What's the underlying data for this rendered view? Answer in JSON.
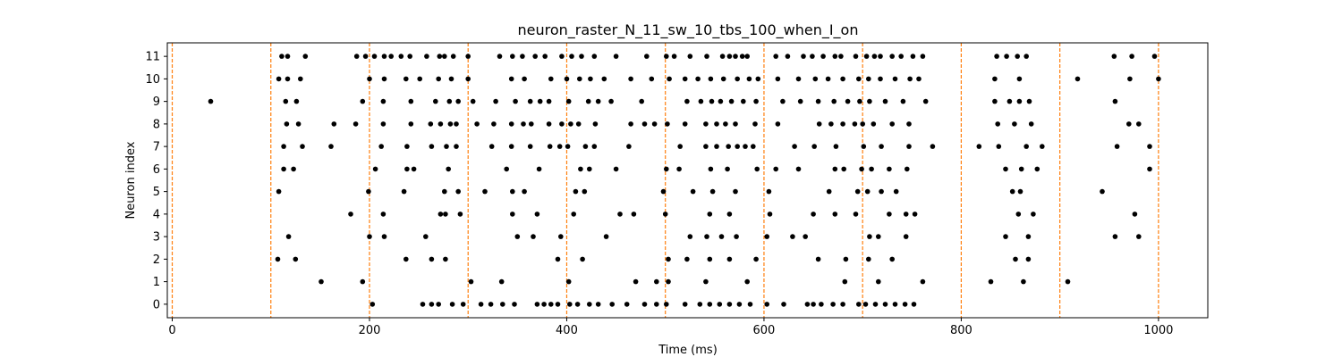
{
  "chart_data": {
    "type": "scatter",
    "title": "neuron_raster_N_11_sw_10_tbs_100_when_I_on",
    "xlabel": "Time (ms)",
    "ylabel": "Neuron index",
    "xlim": [
      -5,
      1050
    ],
    "ylim": [
      -0.6,
      11.6
    ],
    "xticks": [
      0,
      200,
      400,
      600,
      800,
      1000
    ],
    "yticks": [
      0,
      1,
      2,
      3,
      4,
      5,
      6,
      7,
      8,
      9,
      10,
      11
    ],
    "grid": false,
    "legend": "none",
    "marker_color": "#000000",
    "vline_color": "#ff7f0e",
    "vline_style": "dashed",
    "vlines": [
      0,
      100,
      200,
      300,
      400,
      500,
      600,
      700,
      800,
      900,
      1000
    ],
    "series": [
      {
        "neuron": 0,
        "x": [
          203,
          254,
          263,
          270,
          284,
          295,
          313,
          323,
          335,
          347,
          370,
          377,
          384,
          391,
          403,
          411,
          423,
          432,
          446,
          461,
          479,
          491,
          501,
          520,
          535,
          545,
          555,
          565,
          575,
          586,
          603,
          620,
          644,
          650,
          658,
          670,
          680,
          696,
          703,
          713,
          723,
          733,
          743,
          752
        ]
      },
      {
        "neuron": 1,
        "x": [
          151,
          193,
          303,
          334,
          402,
          470,
          491,
          503,
          541,
          583,
          682,
          716,
          761,
          830,
          863,
          908
        ]
      },
      {
        "neuron": 2,
        "x": [
          107,
          125,
          237,
          263,
          277,
          391,
          416,
          503,
          522,
          545,
          565,
          592,
          655,
          683,
          706,
          730,
          855,
          868
        ]
      },
      {
        "neuron": 3,
        "x": [
          118,
          200,
          215,
          257,
          350,
          366,
          394,
          440,
          525,
          542,
          557,
          572,
          603,
          629,
          642,
          707,
          716,
          744,
          845,
          868,
          956,
          980
        ]
      },
      {
        "neuron": 4,
        "x": [
          181,
          214,
          272,
          277,
          292,
          345,
          370,
          407,
          454,
          468,
          500,
          545,
          565,
          606,
          650,
          672,
          693,
          727,
          744,
          753,
          858,
          873,
          976
        ]
      },
      {
        "neuron": 5,
        "x": [
          108,
          199,
          235,
          276,
          290,
          317,
          345,
          357,
          409,
          418,
          498,
          528,
          548,
          571,
          605,
          666,
          695,
          705,
          719,
          734,
          852,
          860,
          943
        ]
      },
      {
        "neuron": 6,
        "x": [
          113,
          123,
          206,
          238,
          245,
          280,
          339,
          372,
          414,
          423,
          450,
          501,
          514,
          546,
          563,
          593,
          612,
          635,
          672,
          681,
          699,
          709,
          727,
          745,
          845,
          861,
          877,
          991
        ]
      },
      {
        "neuron": 7,
        "x": [
          113,
          132,
          161,
          212,
          238,
          263,
          278,
          288,
          324,
          344,
          363,
          383,
          393,
          401,
          419,
          428,
          463,
          515,
          541,
          552,
          564,
          573,
          581,
          589,
          631,
          651,
          673,
          701,
          719,
          747,
          771,
          818,
          838,
          866,
          882,
          958,
          991
        ]
      },
      {
        "neuron": 8,
        "x": [
          116,
          128,
          164,
          186,
          214,
          242,
          262,
          272,
          282,
          288,
          309,
          326,
          344,
          356,
          364,
          382,
          395,
          404,
          412,
          429,
          465,
          479,
          489,
          502,
          520,
          541,
          552,
          561,
          571,
          591,
          614,
          656,
          668,
          680,
          692,
          700,
          711,
          730,
          747,
          837,
          854,
          871,
          970,
          980
        ]
      },
      {
        "neuron": 9,
        "x": [
          39,
          115,
          126,
          193,
          214,
          242,
          267,
          281,
          290,
          305,
          328,
          348,
          363,
          373,
          382,
          402,
          422,
          432,
          445,
          476,
          522,
          536,
          547,
          556,
          567,
          579,
          592,
          619,
          637,
          655,
          671,
          685,
          697,
          707,
          723,
          741,
          764,
          834,
          849,
          859,
          869,
          956
        ]
      },
      {
        "neuron": 10,
        "x": [
          108,
          117,
          130,
          200,
          215,
          237,
          251,
          270,
          283,
          300,
          344,
          357,
          384,
          400,
          413,
          424,
          438,
          465,
          486,
          504,
          520,
          533,
          546,
          559,
          573,
          585,
          594,
          614,
          635,
          652,
          665,
          680,
          696,
          706,
          718,
          733,
          748,
          757,
          834,
          859,
          918,
          971,
          1000
        ]
      },
      {
        "neuron": 11,
        "x": [
          111,
          117,
          135,
          187,
          196,
          205,
          215,
          222,
          232,
          241,
          258,
          271,
          276,
          285,
          300,
          332,
          345,
          355,
          368,
          378,
          395,
          405,
          415,
          428,
          450,
          481,
          501,
          509,
          525,
          542,
          558,
          565,
          571,
          578,
          583,
          612,
          624,
          640,
          649,
          660,
          672,
          678,
          693,
          704,
          712,
          718,
          730,
          739,
          751,
          761,
          836,
          846,
          857,
          866,
          955,
          973,
          996
        ]
      }
    ]
  }
}
